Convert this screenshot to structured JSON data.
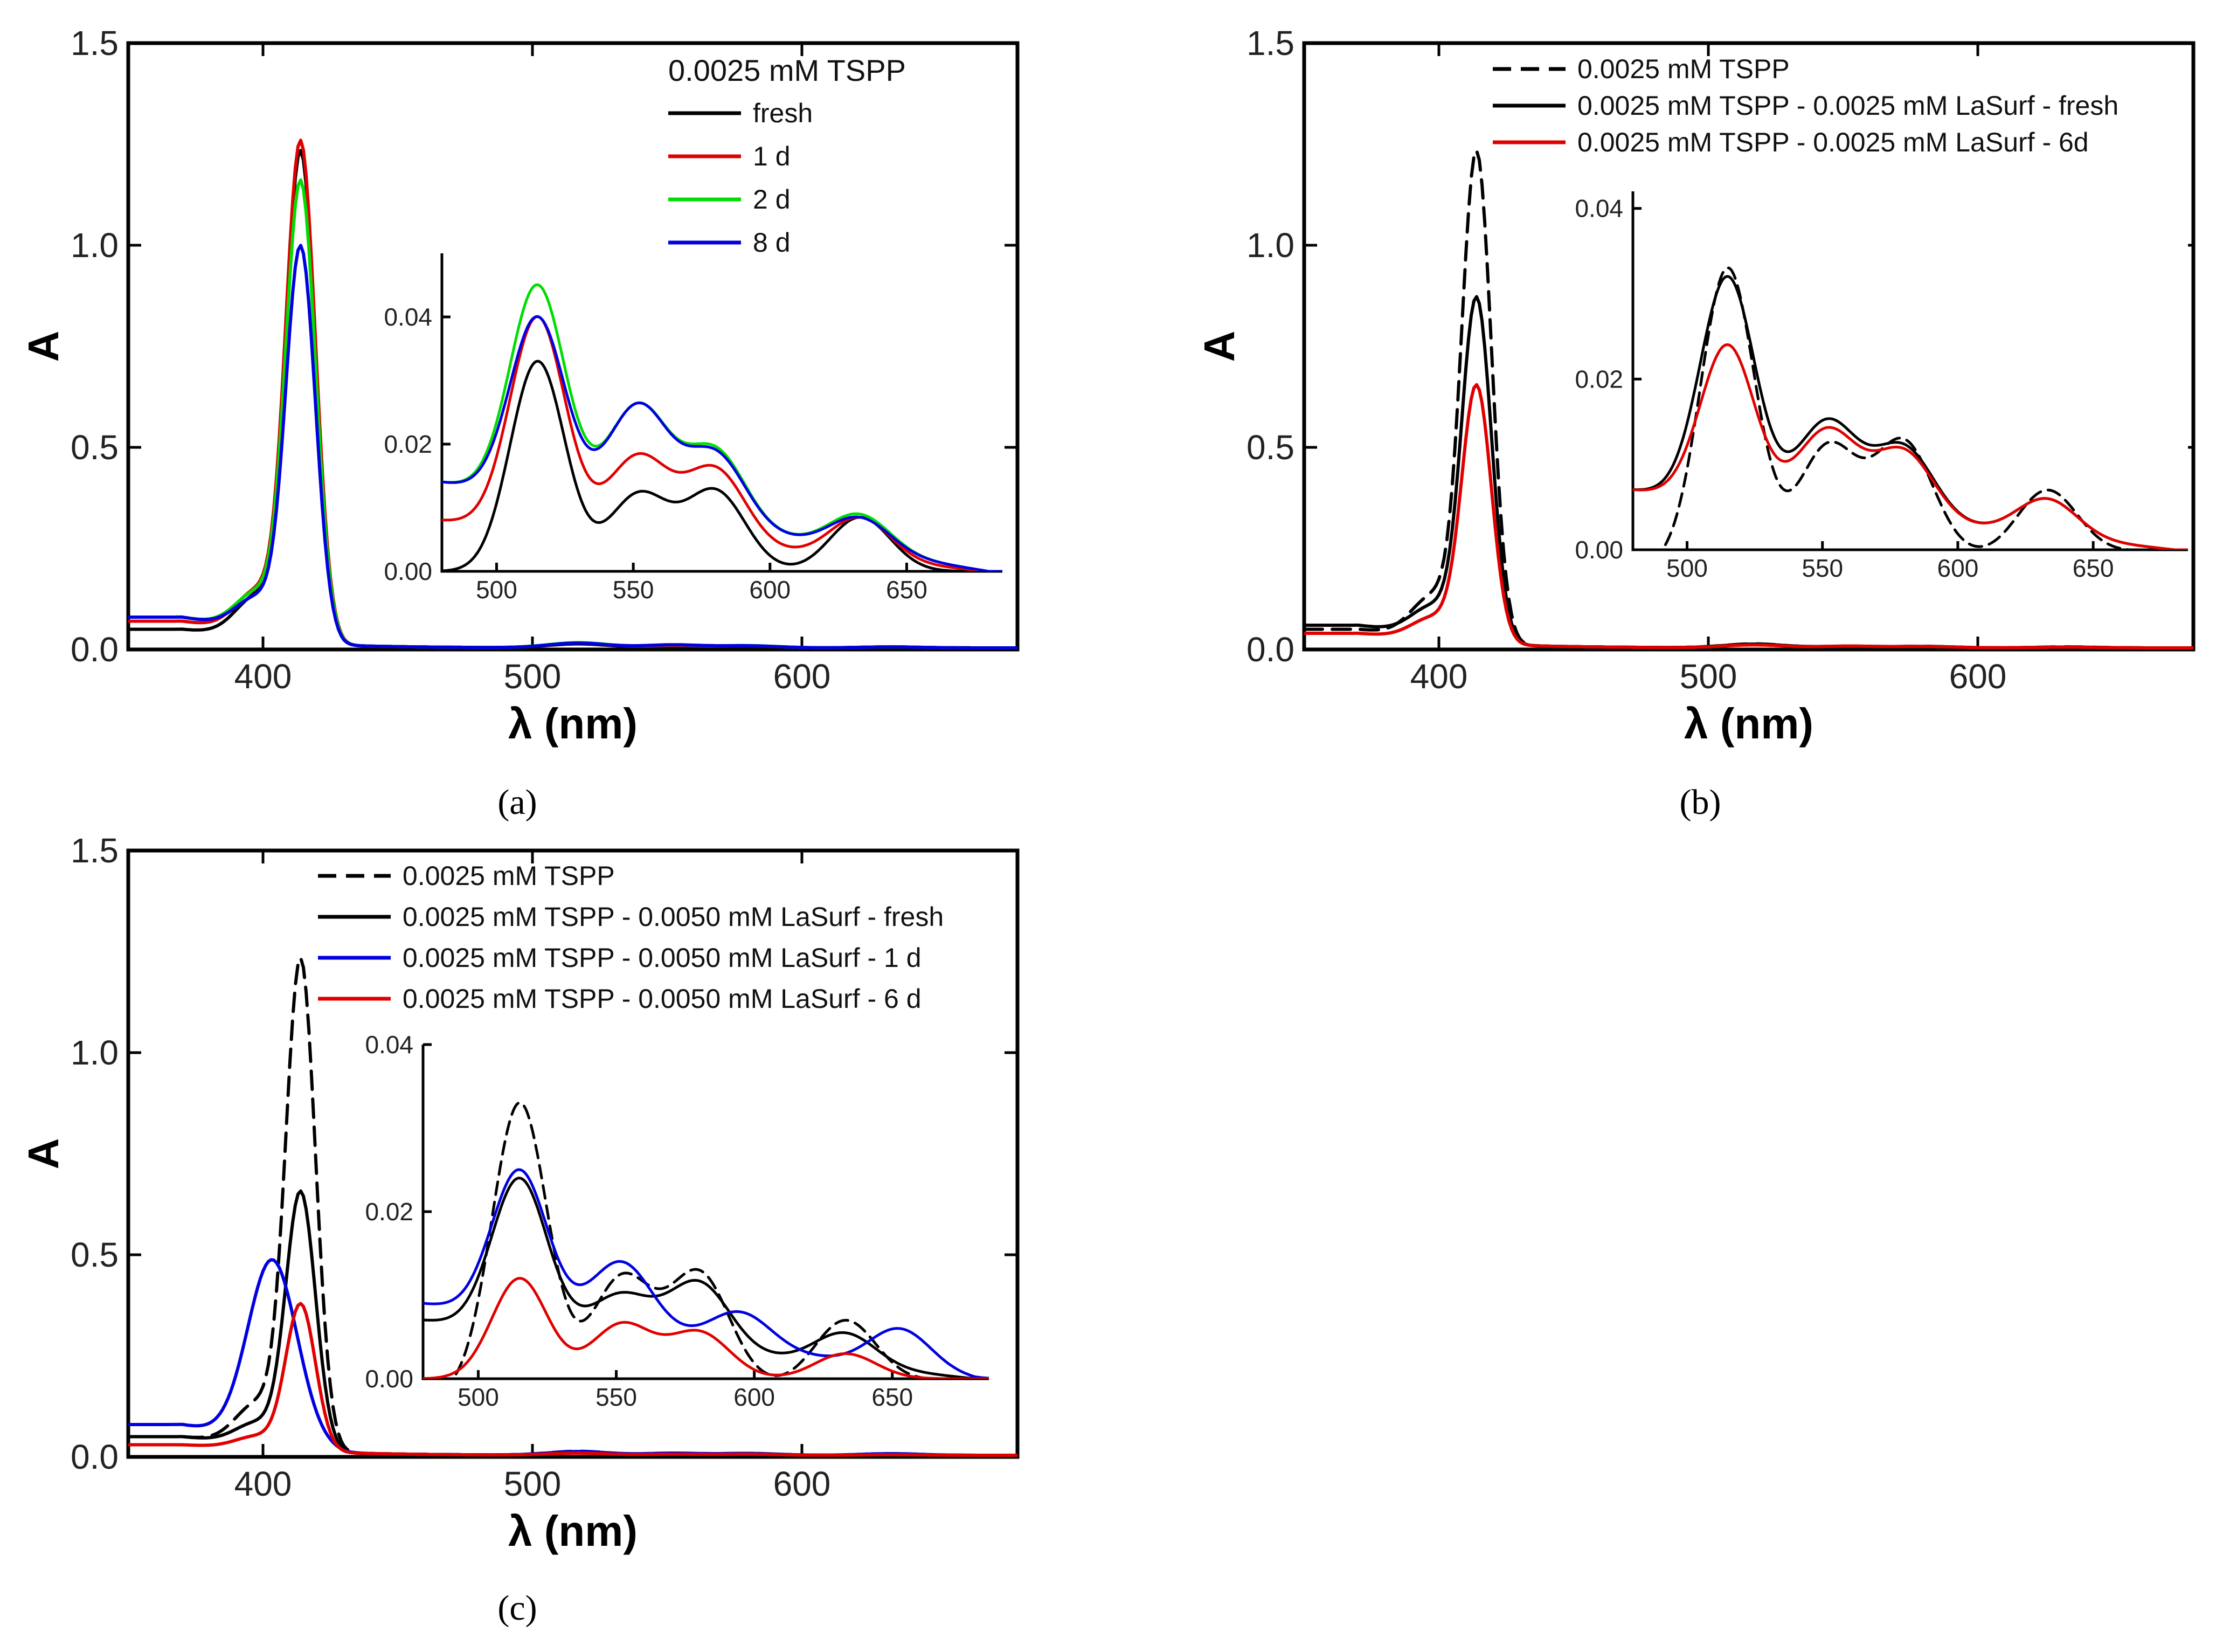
{
  "chart_data": [
    {
      "type": "line",
      "panel_label": "(a)",
      "xlabel": "λ (nm)",
      "ylabel": "A",
      "xlim": [
        350,
        680
      ],
      "ylim": [
        0,
        1.5
      ],
      "xticks": [
        400,
        500,
        600
      ],
      "yticks": [
        0.0,
        0.5,
        1.0,
        1.5
      ],
      "ytick_labels": [
        "0.0",
        "0.5",
        "1.0",
        "1.5"
      ],
      "legend": {
        "header": "0.0025 mM TSPP",
        "position": "top-right"
      },
      "series": [
        {
          "name": "fresh",
          "color": "#000000",
          "dash": "solid",
          "peak": 1.2,
          "q": [
            0.0095,
            0.0033,
            0.0036,
            0.0025
          ],
          "baseline": 0.04
        },
        {
          "name": "1 d",
          "color": "#e00000",
          "dash": "solid",
          "peak": 1.22,
          "q": [
            0.0115,
            0.005,
            0.0048,
            0.0023
          ],
          "baseline": 0.06
        },
        {
          "name": "2 d",
          "color": "#00dd00",
          "dash": "solid",
          "peak": 1.12,
          "q": [
            0.0125,
            0.007,
            0.0052,
            0.0024
          ],
          "baseline": 0.07
        },
        {
          "name": "8 d",
          "color": "#0000e0",
          "dash": "solid",
          "peak": 0.96,
          "q": [
            0.0115,
            0.0073,
            0.005,
            0.0023
          ],
          "baseline": 0.07
        }
      ],
      "inset": {
        "xlim": [
          480,
          685
        ],
        "ylim": [
          0,
          0.05
        ],
        "xticks": [
          500,
          550,
          600,
          650
        ],
        "yticks": [
          0.0,
          0.02,
          0.04
        ],
        "ytick_labels": [
          "0.00",
          "0.02",
          "0.04"
        ],
        "series": [
          {
            "name": "fresh",
            "color": "#000000",
            "dash": "solid",
            "offset": 0.0,
            "peaks": [
              0.033,
              0.012,
              0.0125,
              0.0085
            ]
          },
          {
            "name": "1 d",
            "color": "#e00000",
            "dash": "solid",
            "offset": 0.008,
            "peaks": [
              0.04,
              0.018,
              0.016,
              0.0085
            ]
          },
          {
            "name": "2 d",
            "color": "#00dd00",
            "dash": "solid",
            "offset": 0.014,
            "peaks": [
              0.045,
              0.026,
              0.019,
              0.009
            ]
          },
          {
            "name": "8 d",
            "color": "#0000e0",
            "dash": "solid",
            "offset": 0.014,
            "peaks": [
              0.04,
              0.026,
              0.0185,
              0.0085
            ]
          }
        ]
      }
    },
    {
      "type": "line",
      "panel_label": "(b)",
      "xlabel": "λ (nm)",
      "ylabel": "A",
      "xlim": [
        350,
        680
      ],
      "ylim": [
        0,
        1.5
      ],
      "xticks": [
        400,
        500,
        600
      ],
      "yticks": [
        0.0,
        0.5,
        1.0,
        1.5
      ],
      "ytick_labels": [
        "0.0",
        "0.5",
        "1.0",
        "1.5"
      ],
      "legend": {
        "header": "",
        "position": "top-right"
      },
      "series": [
        {
          "name": "0.0025 mM TSPP",
          "color": "#000000",
          "dash": "dashed",
          "peak": 1.2,
          "q": [
            0.0095,
            0.0033,
            0.0036,
            0.0025
          ],
          "baseline": 0.04
        },
        {
          "name": "0.0025 mM TSPP - 0.0025 mM LaSurf - fresh",
          "color": "#000000",
          "dash": "solid",
          "peak": 0.84,
          "q": [
            0.009,
            0.004,
            0.0035,
            0.002
          ],
          "baseline": 0.05
        },
        {
          "name": "0.0025 mM TSPP - 0.0025 mM LaSurf - 6d",
          "color": "#e00000",
          "dash": "solid",
          "peak": 0.63,
          "q": [
            0.007,
            0.004,
            0.0033,
            0.0018
          ],
          "baseline": 0.03
        }
      ],
      "inset": {
        "xlim": [
          480,
          685
        ],
        "ylim": [
          0,
          0.042
        ],
        "xticks": [
          500,
          550,
          600,
          650
        ],
        "yticks": [
          0.0,
          0.02,
          0.04
        ],
        "ytick_labels": [
          "0.00",
          "0.02",
          "0.04"
        ],
        "series": [
          {
            "name": "0.0025 mM TSPP",
            "color": "#000000",
            "dash": "dashed",
            "offset": -0.002,
            "peaks": [
              0.033,
              0.012,
              0.0125,
              0.007
            ]
          },
          {
            "name": "0.0025 mM TSPP - 0.0025 mM LaSurf - fresh",
            "color": "#000000",
            "dash": "solid",
            "offset": 0.007,
            "peaks": [
              0.032,
              0.015,
              0.012,
              0.006
            ]
          },
          {
            "name": "0.0025 mM TSPP - 0.0025 mM LaSurf - 6d",
            "color": "#e00000",
            "dash": "solid",
            "offset": 0.007,
            "peaks": [
              0.024,
              0.014,
              0.0115,
              0.006
            ]
          }
        ]
      }
    },
    {
      "type": "line",
      "panel_label": "(c)",
      "xlabel": "λ (nm)",
      "ylabel": "A",
      "xlim": [
        350,
        680
      ],
      "ylim": [
        0,
        1.5
      ],
      "xticks": [
        400,
        500,
        600
      ],
      "yticks": [
        0.0,
        0.5,
        1.0,
        1.5
      ],
      "ytick_labels": [
        "0.0",
        "0.5",
        "1.0",
        "1.5"
      ],
      "legend": {
        "header": "",
        "position": "top-right"
      },
      "series": [
        {
          "name": "0.0025 mM TSPP",
          "color": "#000000",
          "dash": "dashed",
          "peak": 1.2,
          "q": [
            0.0095,
            0.0033,
            0.0036,
            0.0025
          ],
          "baseline": 0.04
        },
        {
          "name": "0.0025 mM TSPP - 0.0050 mM LaSurf - fresh",
          "color": "#000000",
          "dash": "solid",
          "peak": 0.63,
          "q": [
            0.008,
            0.004,
            0.0045,
            0.0025
          ],
          "baseline": 0.04
        },
        {
          "name": "0.0025 mM TSPP - 0.0050 mM LaSurf - 1 d",
          "color": "#0000e0",
          "dash": "solid",
          "peak": 0.42,
          "peakpos": 404,
          "q": [
            0.009,
            0.005,
            0.004,
            0.004
          ],
          "baseline": 0.07
        },
        {
          "name": "0.0025 mM TSPP - 0.0050 mM LaSurf - 6 d",
          "color": "#e00000",
          "dash": "solid",
          "peak": 0.36,
          "q": [
            0.005,
            0.0025,
            0.0025,
            0.0015
          ],
          "baseline": 0.02
        }
      ],
      "inset": {
        "xlim": [
          480,
          685
        ],
        "ylim": [
          0,
          0.04
        ],
        "xticks": [
          500,
          550,
          600,
          650
        ],
        "yticks": [
          0.0,
          0.02,
          0.04
        ],
        "ytick_labels": [
          "0.00",
          "0.02",
          "0.04"
        ],
        "series": [
          {
            "name": "0.0025 mM TSPP",
            "color": "#000000",
            "dash": "dashed",
            "offset": -0.002,
            "peaks": [
              0.033,
              0.012,
              0.0125,
              0.007
            ]
          },
          {
            "name": "fresh",
            "color": "#000000",
            "dash": "solid",
            "offset": 0.007,
            "peaks": [
              0.024,
              0.01,
              0.0115,
              0.0055
            ]
          },
          {
            "name": "1 d",
            "color": "#0000e0",
            "dash": "solid",
            "offset": 0.009,
            "peaks": [
              0.025,
              0.014,
              0.008,
              0.006
            ],
            "shift": [
              0,
              0,
              15,
              20
            ]
          },
          {
            "name": "6 d",
            "color": "#e00000",
            "dash": "solid",
            "offset": 0.0,
            "peaks": [
              0.012,
              0.0065,
              0.0055,
              0.003
            ]
          }
        ]
      }
    }
  ]
}
